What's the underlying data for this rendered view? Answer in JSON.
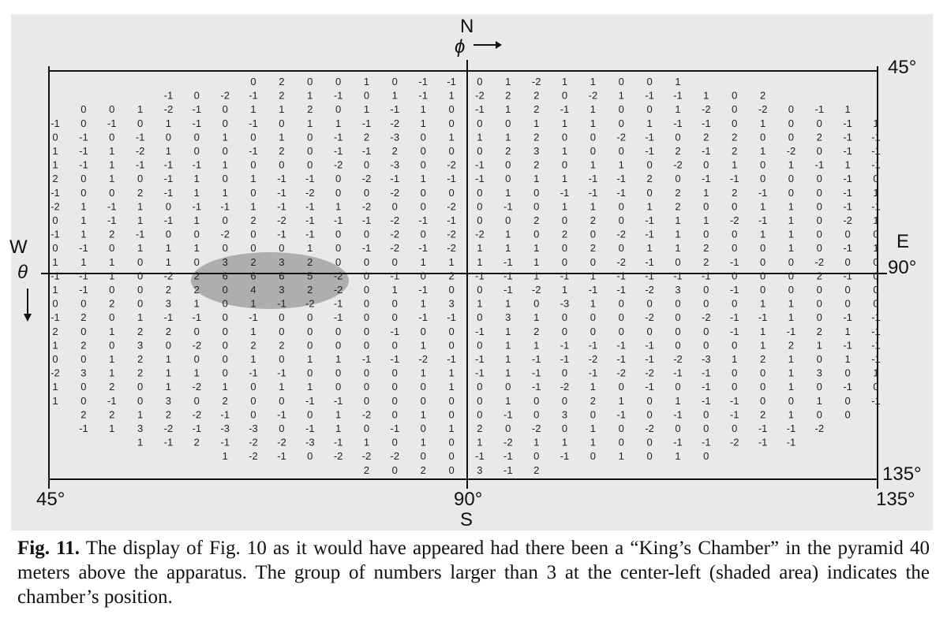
{
  "figure": {
    "compass_north": "N",
    "compass_south": "S",
    "compass_west": "W",
    "compass_east": "E",
    "phi_label": "ϕ",
    "theta_label": "θ",
    "tick_45_left": "45°",
    "tick_90_bottom": "90°",
    "tick_135_bottom": "135°",
    "tick_45_right": "45°",
    "tick_90_right": "90°",
    "tick_135_right": "135°",
    "shaded_region": "chamber position (numbers larger than 3)",
    "rows": [
      "0 2 0 0 1 0 -1 -1 0 1 -2 1 1 0 0 1",
      "-1 0 -2 -1 2 1 -1 0 1 -1 1 -2 2 2 0 -2 1 -1 -1 1 0 2",
      "0 0 1 -2 -1 0 1 1 2 0 1 -1 1 0 -1 1 2 -1 1 0 0 1 -2 0 -2 0 -1 1",
      "-1 0 -1 0 1 -1 0 -1 0 1 1 -1 -2 1 0 0 0 1 1 1 0 1 -1 -1 0 1 0 0 -1 1",
      "0 -1 0 -1 0 0 1 0 1 0 -1 2 -3 0 1 1 1 2 0 0 -2 -1 0 2 2 0 0 2 -1 -1",
      "1 -1 1 -2 1 0 0 -1 2 0 -1 -1 2 0 0 0 2 3 1 0 0 -1 2 -1 2 1 -2 0 -1 -1",
      "1 -1 1 -1 -1 -1 1 0 0 0 -2 0 -3 0 -2 -1 0 2 0 1 1 0 -2 0 1 0 1 -1 1 -1",
      "2 0 1 0 -1 1 0 1 -1 -1 0 -2 -1 1 -1 -1 0 1 1 -1 -1 2 0 -1 -1 0 0 0 -1 0",
      "-1 0 0 2 -1 1 1 0 -1 -2 0 0 -2 0 0 0 1 0 -1 -1 -1 0 2 1 2 -1 0 0 -1 1",
      "-2 1 -1 1 0 -1 -1 1 -1 -1 1 -2 0 0 -2 0 -1 0 1 1 0 1 2 0 0 1 1 0 -1 -1",
      "0 1 -1 1 -1 1 0 2 -2 -1 -1 -1 -2 -1 -1 0 0 2 0 2 0 -1 1 1 -2 -1 1 0 -2 1",
      "-1 1 2 -1 0 0 -2 0 -1 -1 0 0 -2 0 -2 -2 1 0 2 0 -2 -1 1 0 0 1 1 0 0 0",
      "0 -1 0 1 1 1 0 0 0 1 0 -1 -2 -1 -2 1 1 1 0 2 0 1 1 2 0 0 1 0 -1 1",
      "1 1 1 0 1 0 3 2 3 2 0 0 0 1 1 1 -1 1 0 0 -2 -1 0 2 -1 0 0 -2 0 0",
      "-1 -1 1 0 -2 2 6 6 6 5 -2 0 -1 0 2 -1 -1 1 -1 1 -1 -1 -1 -1 0 0 0 2 -1 0",
      "1 -1 0 0 2 2 0 4 3 2 -2 0 1 -1 0 0 -1 -2 1 -1 -1 -2 3 0 -1 0 0 0 0 0",
      "0 0 2 0 3 1 0 1 -1 -2 -1 0 0 1 3 1 1 0 -3 1 0 0 0 0 0 1 1 0 0 0",
      "-1 2 0 1 -1 -1 0 -1 0 0 -1 0 0 -1 -1 0 3 1 0 0 0 -2 0 -2 -1 -1 1 0 -1 -1",
      "2 0 1 2 2 0 0 1 0 0 0 0 -1 0 0 -1 1 2 0 0 0 0 0 0 -1 1 -1 2 1 -1",
      "1 2 0 3 0 -2 0 2 2 0 0 0 0 1 0 0 1 1 -1 -1 -1 -1 0 0 0 1 2 1 -1 -1",
      "0 0 1 2 1 0 0 1 0 1 1 -1 -1 -2 -1 -1 1 -1 -1 -2 -1 -1 -2 -3 1 2 1 0 1 -1",
      "-2 3 1 2 1 1 0 -1 -1 0 0 0 0 1 1 -1 1 -1 0 -1 -2 -2 -1 -1 0 0 1 3 0 1",
      "1 0 2 0 1 -2 1 0 1 1 0 0 0 0 1 0 0 -1 -2 1 0 -1 0 -1 0 0 1 0 -1 0",
      "1 0 -1 0 3 0 2 0 0 -1 -1 0 0 0 0 0 1 0 0 2 1 0 1 -1 -1 0 0 1 0 -1",
      "2 2 1 2 -2 -1 0 -1 0 1 -2 0 1 0 0 -1 0 3 0 -1 0 -1 0 -1 2 1 0 0",
      "-1 1 3 -2 -1 -3 -3 0 -1 1 0 -1 0 1 2 0 -2 0 1 0 -2 0 0 0 -1 -1 -2",
      "1 -1 2 -1 -2 -2 -3 -1 1 0 1 0 1 -2 1 1 1 0 0 -1 -1 -2 -1 -1",
      "1 -2 -1 0 -2 -2 -2 0 0 -1 -1 0 -1 0 1 0 1 0",
      "2 0 2 0 3 -1 2"
    ]
  },
  "caption": {
    "figno": "Fig. 11.",
    "text": " The display of Fig. 10 as it would have appeared had there been a “King’s Chamber” in the pyramid 40 meters above the apparatus. The group of numbers larger than 3 at the center-left (shaded area) indicates the chamber’s position."
  }
}
